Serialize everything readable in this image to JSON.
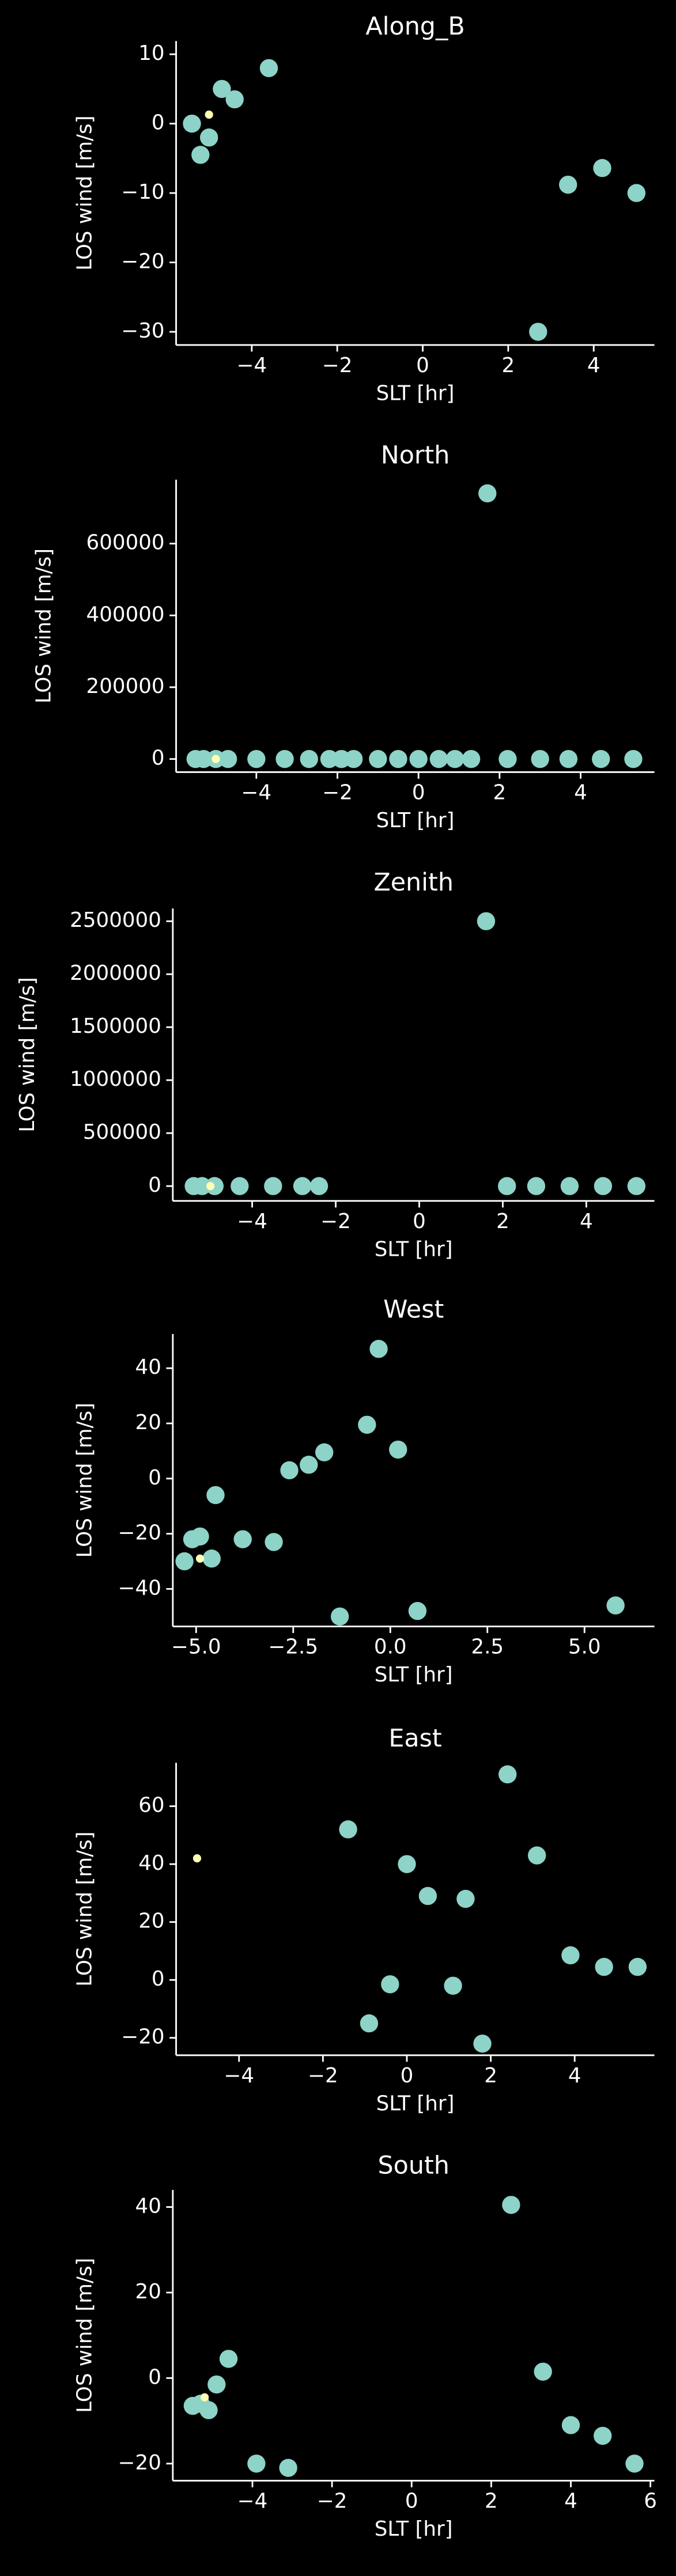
{
  "chart_data": [
    {
      "type": "scatter",
      "title": "Along_B",
      "x_label": "SLT [hr]",
      "y_label": "LOS wind [m/s]",
      "xlim": [
        -5.77,
        5.42
      ],
      "ylim": [
        -31.9,
        11.9
      ],
      "xticks": [
        {
          "value": -4,
          "label": "−4"
        },
        {
          "value": -2,
          "label": "−2"
        },
        0,
        2,
        4
      ],
      "yticks": [
        10,
        0,
        {
          "value": -10,
          "label": "−10"
        },
        {
          "value": -20,
          "label": "−20"
        },
        {
          "value": -30,
          "label": "−30"
        }
      ],
      "series": [
        {
          "color": "#8dd3c7",
          "x": [
            -5.4,
            -5.2,
            -5.0,
            -4.7,
            -4.4,
            -3.6,
            2.7,
            3.4,
            4.2,
            5.0
          ],
          "values": [
            0,
            -4.5,
            -2,
            5,
            3.5,
            8,
            -30,
            -8.8,
            -6.4,
            -10
          ]
        },
        {
          "color": "#ffffb3",
          "x": [
            -5.0
          ],
          "values": [
            1.3
          ]
        }
      ]
    },
    {
      "type": "scatter",
      "title": "North",
      "x_label": "SLT [hr]",
      "y_label": "LOS wind [m/s]",
      "xlim": [
        -5.98,
        5.82
      ],
      "ylim": [
        -36600,
        778000
      ],
      "xticks": [
        {
          "value": -4,
          "label": "−4"
        },
        {
          "value": -2,
          "label": "−2"
        },
        0,
        2,
        4
      ],
      "yticks": [
        0,
        200000,
        400000,
        600000
      ],
      "series": [
        {
          "color": "#8dd3c7",
          "x": [
            -5.5,
            -5.3,
            -5.0,
            -4.7,
            -4.0,
            -3.3,
            -2.7,
            -2.2,
            -1.9,
            -1.6,
            -1.0,
            -0.5,
            0,
            0.5,
            0.9,
            1.3,
            1.7,
            2.2,
            3.0,
            3.7,
            4.5,
            5.3
          ],
          "values": [
            0,
            0,
            0,
            0,
            0,
            0,
            0,
            0,
            0,
            0,
            0,
            0,
            0,
            0,
            0,
            0,
            740000,
            0,
            0,
            0,
            0,
            0
          ]
        },
        {
          "color": "#ffffb3",
          "x": [
            -5.0
          ],
          "values": [
            0
          ]
        }
      ]
    },
    {
      "type": "scatter",
      "title": "Zenith",
      "x_label": "SLT [hr]",
      "y_label": "LOS wind [m/s]",
      "xlim": [
        -5.9,
        5.63
      ],
      "ylim": [
        -140000,
        2620000
      ],
      "xticks": [
        {
          "value": -4,
          "label": "−4"
        },
        {
          "value": -2,
          "label": "−2"
        },
        0,
        2,
        4
      ],
      "yticks": [
        0,
        500000,
        1000000,
        1500000,
        2000000,
        2500000
      ],
      "series": [
        {
          "color": "#8dd3c7",
          "x": [
            -5.4,
            -5.2,
            -4.9,
            -4.3,
            -3.5,
            -2.8,
            -2.4,
            1.6,
            2.1,
            2.8,
            3.6,
            4.4,
            5.2
          ],
          "values": [
            0,
            0,
            0,
            0,
            0,
            0,
            0,
            2500000,
            0,
            0,
            0,
            0,
            0
          ]
        },
        {
          "color": "#ffffb3",
          "x": [
            -5.0
          ],
          "values": [
            0
          ]
        }
      ]
    },
    {
      "type": "scatter",
      "title": "West",
      "x_label": "SLT [hr]",
      "y_label": "LOS wind [m/s]",
      "xlim": [
        -5.6,
        6.8
      ],
      "ylim": [
        -53.6,
        52.4
      ],
      "xticks": [
        {
          "value": -5,
          "label": "−5.0"
        },
        {
          "value": -2.5,
          "label": "−2.5"
        },
        {
          "value": 0,
          "label": "0.0"
        },
        2.5,
        {
          "value": 5,
          "label": "5.0"
        }
      ],
      "yticks": [
        40,
        20,
        0,
        {
          "value": -20,
          "label": "−20"
        },
        {
          "value": -40,
          "label": "−40"
        }
      ],
      "series": [
        {
          "color": "#8dd3c7",
          "x": [
            -5.3,
            -5.1,
            -4.9,
            -4.6,
            -4.5,
            -3.8,
            -3.0,
            -2.6,
            -2.1,
            -1.7,
            -1.3,
            -0.6,
            -0.3,
            0.2,
            0.7,
            5.8
          ],
          "values": [
            -30,
            -22,
            -21,
            -29,
            -6,
            -22,
            -23,
            3,
            5,
            9.5,
            -50,
            19.5,
            47,
            10.5,
            -48,
            -46
          ]
        },
        {
          "color": "#ffffb3",
          "x": [
            -4.9
          ],
          "values": [
            -29
          ]
        }
      ]
    },
    {
      "type": "scatter",
      "title": "East",
      "x_label": "SLT [hr]",
      "y_label": "LOS wind [m/s]",
      "xlim": [
        -5.5,
        5.9
      ],
      "ylim": [
        -26,
        75
      ],
      "xticks": [
        {
          "value": -4,
          "label": "−4"
        },
        {
          "value": -2,
          "label": "−2"
        },
        0,
        2,
        4
      ],
      "yticks": [
        60,
        40,
        20,
        0,
        {
          "value": -20,
          "label": "−20"
        }
      ],
      "series": [
        {
          "color": "#8dd3c7",
          "x": [
            -1.4,
            -0.9,
            -0.4,
            0,
            0.5,
            1.1,
            1.4,
            1.8,
            2.4,
            3.1,
            3.9,
            4.7,
            5.5
          ],
          "values": [
            52,
            -15,
            -1.5,
            40,
            29,
            -2,
            28,
            -22,
            71,
            43,
            8.5,
            4.5,
            4.5
          ]
        },
        {
          "color": "#ffffb3",
          "x": [
            -5.0
          ],
          "values": [
            42
          ]
        }
      ]
    },
    {
      "type": "scatter",
      "title": "South",
      "x_label": "SLT [hr]",
      "y_label": "LOS wind [m/s]",
      "xlim": [
        -6.0,
        6.1
      ],
      "ylim": [
        -24,
        44
      ],
      "xticks": [
        {
          "value": -4,
          "label": "−4"
        },
        {
          "value": -2,
          "label": "−2"
        },
        0,
        2,
        4,
        6
      ],
      "yticks": [
        40,
        20,
        0,
        {
          "value": -20,
          "label": "−20"
        }
      ],
      "series": [
        {
          "color": "#8dd3c7",
          "x": [
            -5.5,
            -5.3,
            -5.1,
            -4.9,
            -4.6,
            -3.9,
            -3.1,
            2.5,
            3.3,
            4.0,
            4.8,
            5.6
          ],
          "values": [
            -6.5,
            -6,
            -7.5,
            -1.5,
            4.5,
            -20,
            -21,
            40.5,
            1.5,
            -11,
            -13.5,
            -20
          ]
        },
        {
          "color": "#ffffb3",
          "x": [
            -5.2
          ],
          "values": [
            -4.5
          ]
        }
      ]
    }
  ]
}
